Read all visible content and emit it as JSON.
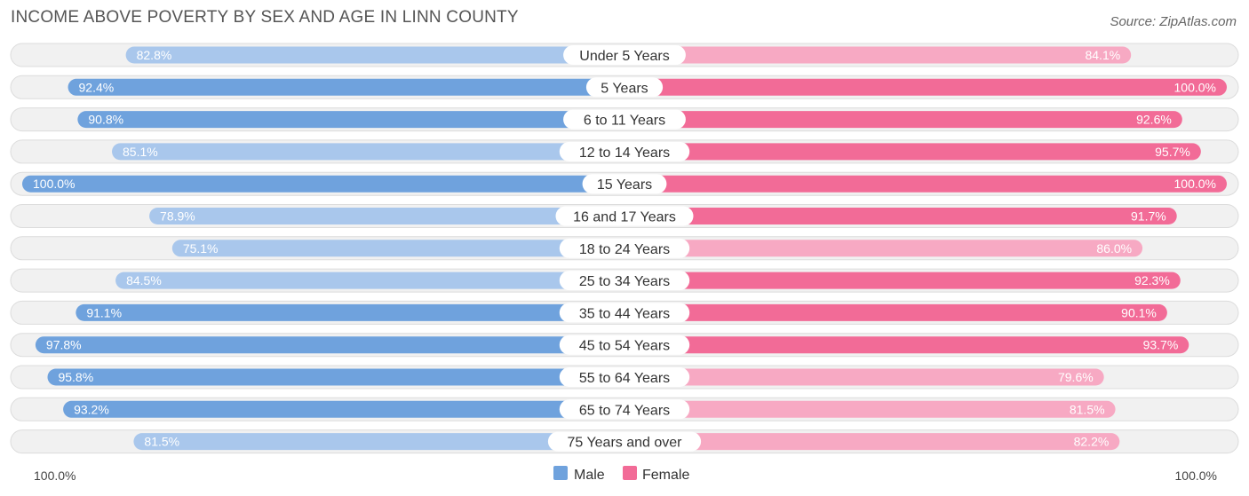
{
  "title": "INCOME ABOVE POVERTY BY SEX AND AGE IN LINN COUNTY",
  "source": "Source: ZipAtlas.com",
  "colors": {
    "male_strong": "#6fa2dd",
    "male_light": "#a9c7ec",
    "female_strong": "#f26b97",
    "female_light": "#f7a9c3"
  },
  "chart_data": {
    "type": "bar",
    "orientation": "horizontal-diverging",
    "title": "INCOME ABOVE POVERTY BY SEX AND AGE IN LINN COUNTY",
    "categories": [
      "Under 5 Years",
      "5 Years",
      "6 to 11 Years",
      "12 to 14 Years",
      "15 Years",
      "16 and 17 Years",
      "18 to 24 Years",
      "25 to 34 Years",
      "35 to 44 Years",
      "45 to 54 Years",
      "55 to 64 Years",
      "65 to 74 Years",
      "75 Years and over"
    ],
    "series": [
      {
        "name": "Male",
        "values": [
          82.8,
          92.4,
          90.8,
          85.1,
          100.0,
          78.9,
          75.1,
          84.5,
          91.1,
          97.8,
          95.8,
          93.2,
          81.5
        ],
        "labels": [
          "82.8%",
          "92.4%",
          "90.8%",
          "85.1%",
          "100.0%",
          "78.9%",
          "75.1%",
          "84.5%",
          "91.1%",
          "97.8%",
          "95.8%",
          "93.2%",
          "81.5%"
        ]
      },
      {
        "name": "Female",
        "values": [
          84.1,
          100.0,
          92.6,
          95.7,
          100.0,
          91.7,
          86.0,
          92.3,
          90.1,
          93.7,
          79.6,
          81.5,
          82.2
        ],
        "labels": [
          "84.1%",
          "100.0%",
          "92.6%",
          "95.7%",
          "100.0%",
          "91.7%",
          "86.0%",
          "92.3%",
          "90.1%",
          "93.7%",
          "79.6%",
          "81.5%",
          "82.2%"
        ]
      }
    ],
    "xlim": [
      0,
      100
    ],
    "axis_left_label": "100.0%",
    "axis_right_label": "100.0%",
    "legend": [
      "Male",
      "Female"
    ],
    "legend_position": "bottom-center"
  }
}
